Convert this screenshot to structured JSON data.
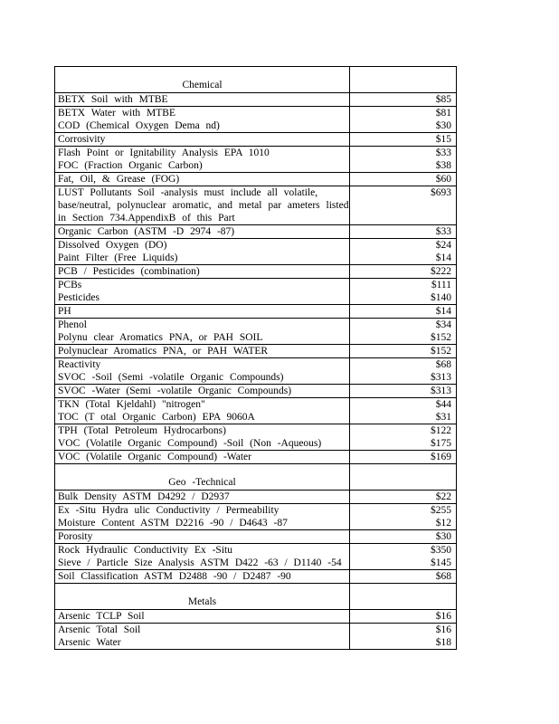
{
  "page": {
    "background": "#ffffff",
    "text_color": "#000000",
    "border_color": "#000000"
  },
  "table": {
    "price_header": "",
    "blocks": [
      {
        "type": "header",
        "title": "Chemical"
      },
      {
        "type": "rows",
        "lines": [
          {
            "t": "BETX Soil with MTBE",
            "p": "$85"
          }
        ]
      },
      {
        "type": "rows",
        "lines": [
          {
            "t": "BETX Water with MTBE",
            "p": "$81"
          },
          {
            "t": "COD (Chemical Oxygen Dema nd)",
            "p": "$30"
          }
        ]
      },
      {
        "type": "rows",
        "lines": [
          {
            "t": "Corrosivity",
            "p": "$15"
          }
        ]
      },
      {
        "type": "rows",
        "lines": [
          {
            "t": "Flash Point or Ignitability Analysis EPA 1010",
            "p": "$33"
          },
          {
            "t": "FOC (Fraction Organic Carbon)",
            "p": "$38"
          }
        ]
      },
      {
        "type": "rows",
        "lines": [
          {
            "t": "Fat, Oil, & Grease (FOG)",
            "p": "$60"
          }
        ]
      },
      {
        "type": "rows",
        "lines": [
          {
            "t": "LUST Pollutants Soil -analysis must include all volatile,",
            "p": "$693"
          },
          {
            "t": "base/neutral, polynuclear aromatic, and metal par ameters listed",
            "p": ""
          },
          {
            "t": "in Section 734.AppendixB of this Part",
            "p": ""
          }
        ]
      },
      {
        "type": "rows",
        "lines": [
          {
            "t": "Organic Carbon (ASTM -D 2974 -87)",
            "p": "$33"
          }
        ]
      },
      {
        "type": "rows",
        "lines": [
          {
            "t": "Dissolved Oxygen (DO)",
            "p": "$24"
          },
          {
            "t": "Paint Filter (Free Liquids)",
            "p": "$14"
          }
        ]
      },
      {
        "type": "rows",
        "lines": [
          {
            "t": "PCB / Pesticides (combination)",
            "p": "$222"
          }
        ]
      },
      {
        "type": "rows",
        "lines": [
          {
            "t": "PCBs",
            "p": "$111"
          },
          {
            "t": "Pesticides",
            "p": "$140"
          }
        ]
      },
      {
        "type": "rows",
        "lines": [
          {
            "t": "PH",
            "p": "$14"
          }
        ]
      },
      {
        "type": "rows",
        "lines": [
          {
            "t": "Phenol",
            "p": "$34"
          },
          {
            "t": "Polynu clear Aromatics PNA, or PAH SOIL",
            "p": "$152"
          }
        ]
      },
      {
        "type": "rows",
        "lines": [
          {
            "t": "Polynuclear Aromatics PNA, or PAH WATER",
            "p": "$152"
          }
        ]
      },
      {
        "type": "rows",
        "lines": [
          {
            "t": "Reactivity",
            "p": "$68"
          },
          {
            "t": "SVOC -Soil (Semi -volatile Organic Compounds)",
            "p": "$313"
          }
        ]
      },
      {
        "type": "rows",
        "lines": [
          {
            "t": "SVOC -Water (Semi -volatile Organic Compounds)",
            "p": "$313"
          }
        ]
      },
      {
        "type": "rows",
        "lines": [
          {
            "t": "TKN (Total Kjeldahl) \"nitrogen\"",
            "p": "$44"
          },
          {
            "t": "TOC (T otal Organic Carbon) EPA 9060A",
            "p": "$31"
          }
        ]
      },
      {
        "type": "rows",
        "lines": [
          {
            "t": "TPH (Total Petroleum Hydrocarbons)",
            "p": "$122"
          },
          {
            "t": "VOC (Volatile Organic Compound) -Soil (Non -Aqueous)",
            "p": "$175"
          }
        ]
      },
      {
        "type": "rows",
        "lines": [
          {
            "t": "VOC (Volatile Organic Compound) -Water",
            "p": "$169"
          }
        ]
      },
      {
        "type": "header",
        "title": "Geo -Technical"
      },
      {
        "type": "rows",
        "lines": [
          {
            "t": "Bulk Density ASTM D4292 / D2937",
            "p": "$22"
          }
        ]
      },
      {
        "type": "rows",
        "lines": [
          {
            "t": "Ex -Situ Hydra ulic Conductivity / Permeability",
            "p": "$255"
          },
          {
            "t": "Moisture Content ASTM D2216 -90 / D4643 -87",
            "p": "$12"
          }
        ]
      },
      {
        "type": "rows",
        "lines": [
          {
            "t": "Porosity",
            "p": "$30"
          }
        ]
      },
      {
        "type": "rows",
        "lines": [
          {
            "t": "Rock Hydraulic Conductivity Ex -Situ",
            "p": "$350"
          },
          {
            "t": "Sieve / Particle Size Analysis ASTM D422 -63 / D1140 -54",
            "p": "$145"
          }
        ]
      },
      {
        "type": "rows",
        "lines": [
          {
            "t": "Soil Classification ASTM D2488 -90 / D2487 -90",
            "p": "$68"
          }
        ]
      },
      {
        "type": "header",
        "title": "Metals"
      },
      {
        "type": "rows",
        "lines": [
          {
            "t": "Arsenic TCLP Soil",
            "p": "$16"
          }
        ]
      },
      {
        "type": "rows",
        "lines": [
          {
            "t": "Arsenic Total Soil",
            "p": "$16"
          },
          {
            "t": "Arsenic Water",
            "p": "$18"
          }
        ]
      }
    ]
  }
}
